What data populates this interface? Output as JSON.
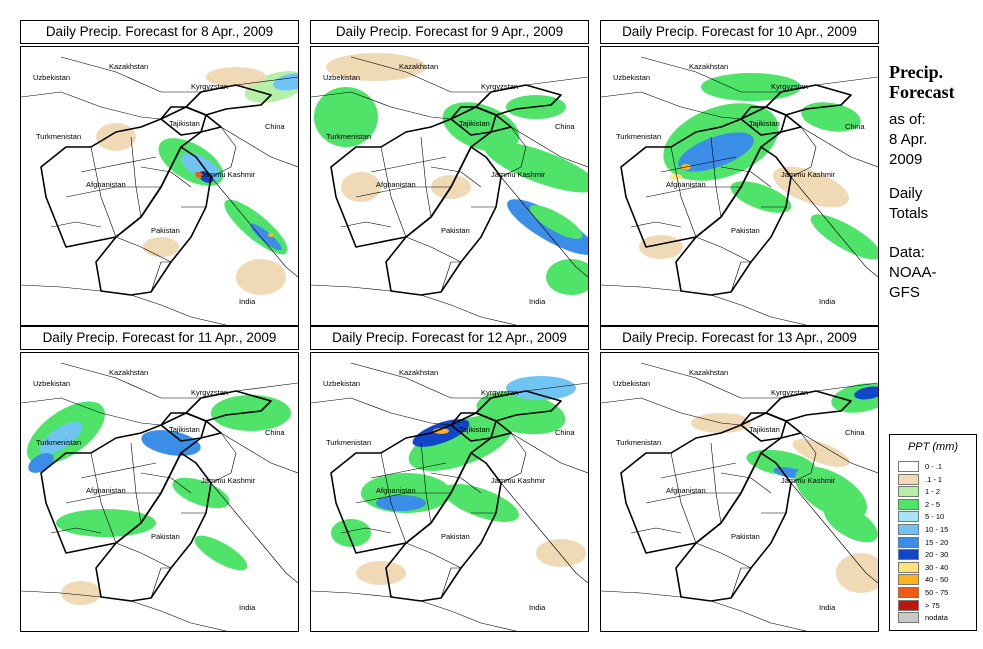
{
  "panels": [
    {
      "title": "Daily Precip. Forecast for  8 Apr., 2009"
    },
    {
      "title": "Daily Precip. Forecast for  9 Apr., 2009"
    },
    {
      "title": "Daily Precip. Forecast for  10 Apr., 2009"
    },
    {
      "title": "Daily Precip. Forecast for  11 Apr., 2009"
    },
    {
      "title": "Daily Precip. Forecast for  12 Apr., 2009"
    },
    {
      "title": "Daily Precip. Forecast for  13 Apr., 2009"
    }
  ],
  "map_labels": {
    "kazakhstan": "Kazakhstan",
    "uzbekistan": "Uzbekistan",
    "kyrgyzstan": "Kyrgyzstan",
    "tajikistan": "Tajikistan",
    "turkmenistan": "Turkmenistan",
    "china": "China",
    "jammu_kashmir": "Jammu Kashmir",
    "afghanistan": "Afghanistan",
    "pakistan": "Pakistan",
    "india": "India"
  },
  "sidebar": {
    "title_line1": "Precip.",
    "title_line2": "Forecast",
    "as_of": "as of:",
    "date_line1": "8 Apr.",
    "date_line2": "2009",
    "totals_line1": "Daily",
    "totals_line2": "Totals",
    "data_line1": "Data:",
    "data_line2": "NOAA-",
    "data_line3": "GFS"
  },
  "legend": {
    "title": "PPT (mm)",
    "items": [
      {
        "label": "0 - .1",
        "color": "#ffffff"
      },
      {
        "label": ".1 - 1",
        "color": "#f0d9b5"
      },
      {
        "label": "1 - 2",
        "color": "#b6f0a8"
      },
      {
        "label": "2 - 5",
        "color": "#4fe36a"
      },
      {
        "label": "5 - 10",
        "color": "#a8e4f4"
      },
      {
        "label": "10 - 15",
        "color": "#6fc4f2"
      },
      {
        "label": "15 - 20",
        "color": "#3a8ee8"
      },
      {
        "label": "20 - 30",
        "color": "#1246c8"
      },
      {
        "label": "30 - 40",
        "color": "#ffe27a"
      },
      {
        "label": "40 - 50",
        "color": "#ffb21e"
      },
      {
        "label": "50 - 75",
        "color": "#f05a14"
      },
      {
        "label": "> 75",
        "color": "#c0140f"
      },
      {
        "label": "nodata",
        "color": "#c8c8c8"
      }
    ]
  }
}
